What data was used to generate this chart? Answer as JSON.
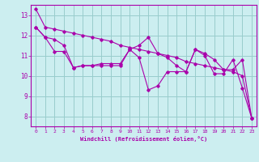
{
  "xlabel": "Windchill (Refroidissement éolien,°C)",
  "background_color": "#cceef0",
  "line_color": "#aa00aa",
  "grid_color": "#99cccc",
  "xlim": [
    -0.5,
    23.5
  ],
  "ylim": [
    7.5,
    13.5
  ],
  "yticks": [
    8,
    9,
    10,
    11,
    12,
    13
  ],
  "xticks": [
    0,
    1,
    2,
    3,
    4,
    5,
    6,
    7,
    8,
    9,
    10,
    11,
    12,
    13,
    14,
    15,
    16,
    17,
    18,
    19,
    20,
    21,
    22,
    23
  ],
  "series1": [
    13.3,
    12.4,
    12.3,
    12.2,
    12.1,
    12.0,
    11.9,
    11.8,
    11.7,
    11.5,
    11.4,
    11.3,
    11.2,
    11.1,
    11.0,
    10.9,
    10.7,
    10.6,
    10.5,
    10.4,
    10.3,
    10.2,
    10.0,
    7.9
  ],
  "series2": [
    12.4,
    11.9,
    11.8,
    11.5,
    10.4,
    10.5,
    10.5,
    10.5,
    10.5,
    10.5,
    11.3,
    11.5,
    11.9,
    11.1,
    10.9,
    10.5,
    10.2,
    11.3,
    11.1,
    10.8,
    10.3,
    10.3,
    10.8,
    7.9
  ],
  "series3": [
    12.4,
    11.9,
    11.2,
    11.2,
    10.4,
    10.5,
    10.5,
    10.6,
    10.6,
    10.6,
    11.3,
    10.9,
    9.3,
    9.5,
    10.2,
    10.2,
    10.2,
    11.3,
    11.0,
    10.1,
    10.1,
    10.8,
    9.4,
    7.9
  ]
}
